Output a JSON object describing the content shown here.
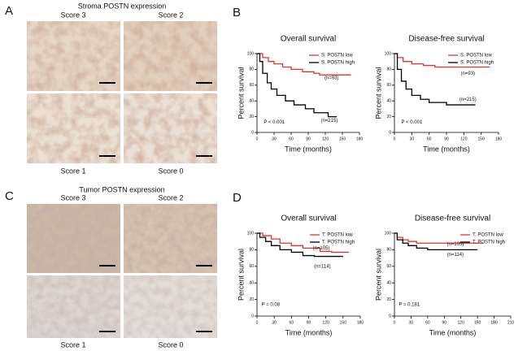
{
  "panels": [
    {
      "label": "A",
      "title": "Stroma POSTN expression",
      "scores": [
        "Score 3",
        "Score 2",
        "Score 1",
        "Score 0"
      ]
    },
    {
      "label": "B"
    },
    {
      "label": "C",
      "title": "Tumor POSTN expression",
      "scores": [
        "Score 3",
        "Score 2",
        "Score 1",
        "Score 0"
      ]
    },
    {
      "label": "D"
    }
  ],
  "chart_data": [
    {
      "type": "line",
      "title": "Overall survival",
      "xlabel": "Time (months)",
      "ylabel": "Percent survival",
      "xlim": [
        0,
        180
      ],
      "xticks": [
        0,
        30,
        60,
        90,
        120,
        150,
        180
      ],
      "ylim": [
        0,
        100
      ],
      "yticks": [
        0,
        20,
        40,
        60,
        80,
        100
      ],
      "legend": "upper right",
      "series": [
        {
          "name": "S. POSTN low",
          "color": "#e8322c",
          "x": [
            0,
            10,
            10,
            20,
            20,
            30,
            30,
            45,
            45,
            60,
            60,
            80,
            80,
            100,
            100,
            110,
            110,
            165
          ],
          "values": [
            100,
            100,
            95,
            95,
            90,
            90,
            87,
            87,
            83,
            83,
            80,
            80,
            77,
            77,
            75,
            75,
            73,
            73
          ]
        },
        {
          "name": "S. POSTN high",
          "color": "#000000",
          "x": [
            0,
            5,
            5,
            10,
            10,
            18,
            18,
            25,
            25,
            35,
            35,
            50,
            50,
            65,
            65,
            85,
            85,
            100,
            100,
            125,
            125,
            140
          ],
          "values": [
            100,
            100,
            90,
            90,
            75,
            75,
            63,
            63,
            55,
            55,
            47,
            47,
            40,
            40,
            35,
            35,
            30,
            30,
            25,
            25,
            20,
            20
          ]
        }
      ],
      "annotations": [
        "(n=93)",
        "(n=215)",
        "P < 0.001"
      ]
    },
    {
      "type": "line",
      "title": "Disease-free survival",
      "xlabel": "Time (months)",
      "ylabel": "Percent survival",
      "xlim": [
        0,
        180
      ],
      "xticks": [
        0,
        30,
        60,
        90,
        120,
        150,
        180
      ],
      "ylim": [
        0,
        100
      ],
      "yticks": [
        0,
        20,
        40,
        60,
        80,
        100
      ],
      "legend": "upper right",
      "series": [
        {
          "name": "S. POSTN low",
          "color": "#e8322c",
          "x": [
            0,
            5,
            5,
            15,
            15,
            30,
            30,
            50,
            50,
            70,
            70,
            165
          ],
          "values": [
            100,
            100,
            95,
            95,
            90,
            90,
            87,
            87,
            85,
            85,
            83,
            83
          ]
        },
        {
          "name": "S. POSTN high",
          "color": "#000000",
          "x": [
            0,
            5,
            5,
            12,
            12,
            20,
            20,
            30,
            30,
            45,
            45,
            60,
            60,
            90,
            90,
            140
          ],
          "values": [
            100,
            100,
            80,
            80,
            65,
            65,
            55,
            55,
            47,
            47,
            42,
            42,
            38,
            38,
            35,
            35
          ]
        }
      ],
      "annotations": [
        "(n=93)",
        "(n=215)",
        "P < 0.001"
      ]
    },
    {
      "type": "line",
      "title": "Overall survival",
      "xlabel": "Time (months)",
      "ylabel": "Percent survival",
      "xlim": [
        0,
        180
      ],
      "xticks": [
        0,
        30,
        60,
        90,
        120,
        150,
        180
      ],
      "ylim": [
        0,
        100
      ],
      "yticks": [
        0,
        20,
        40,
        60,
        80,
        100
      ],
      "legend": "upper right",
      "series": [
        {
          "name": "T. POSTN low",
          "color": "#e8322c",
          "x": [
            0,
            10,
            10,
            25,
            25,
            40,
            40,
            60,
            60,
            80,
            80,
            110,
            110,
            130,
            130,
            160
          ],
          "values": [
            100,
            100,
            97,
            97,
            93,
            93,
            88,
            88,
            85,
            85,
            82,
            82,
            78,
            78,
            77,
            77
          ]
        },
        {
          "name": "T. POSTN high",
          "color": "#000000",
          "x": [
            0,
            5,
            5,
            15,
            15,
            25,
            25,
            40,
            40,
            60,
            60,
            80,
            80,
            100,
            100,
            150
          ],
          "values": [
            100,
            100,
            95,
            95,
            90,
            90,
            85,
            85,
            80,
            80,
            77,
            77,
            73,
            73,
            72,
            72
          ]
        }
      ],
      "annotations": [
        "(n=105)",
        "(n=114)",
        "P = 0.08"
      ]
    },
    {
      "type": "line",
      "title": "Disease-free survival",
      "xlabel": "Time (months)",
      "ylabel": "Percent survival",
      "xlim": [
        0,
        210
      ],
      "xticks": [
        0,
        30,
        60,
        90,
        120,
        150,
        180,
        210
      ],
      "ylim": [
        0,
        100
      ],
      "yticks": [
        0,
        20,
        40,
        60,
        80,
        100
      ],
      "legend": "upper right",
      "series": [
        {
          "name": "T. POSTN low",
          "color": "#e8322c",
          "x": [
            0,
            5,
            5,
            15,
            15,
            25,
            25,
            40,
            40,
            160
          ],
          "values": [
            100,
            100,
            95,
            95,
            92,
            92,
            90,
            90,
            88,
            88
          ]
        },
        {
          "name": "T. POSTN high",
          "color": "#000000",
          "x": [
            0,
            5,
            5,
            15,
            15,
            25,
            25,
            40,
            40,
            60,
            60,
            150
          ],
          "values": [
            100,
            100,
            92,
            92,
            88,
            88,
            85,
            85,
            82,
            82,
            80,
            80
          ]
        }
      ],
      "annotations": [
        "(n=105)",
        "(n=114)",
        "P = 0.181"
      ]
    }
  ]
}
